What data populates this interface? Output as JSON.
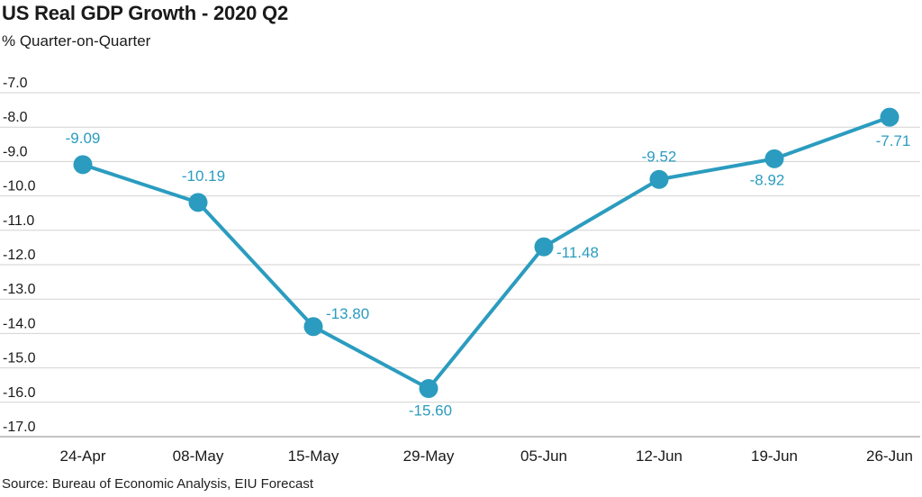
{
  "chart_data": {
    "type": "line",
    "title": "US Real GDP Growth - 2020 Q2",
    "subtitle": "% Quarter-on-Quarter",
    "source": "Source: Bureau of Economic Analysis, EIU Forecast",
    "categories": [
      "24-Apr",
      "08-May",
      "15-May",
      "29-May",
      "05-Jun",
      "12-Jun",
      "19-Jun",
      "26-Jun"
    ],
    "series": [
      {
        "values": [
          -9.09,
          -10.19,
          -13.8,
          -15.6,
          -11.48,
          -9.52,
          -8.92,
          -7.71
        ],
        "labels": [
          "-9.09",
          "-10.19",
          "-13.80",
          "-15.60",
          "-11.48",
          "-9.52",
          "-8.92",
          "-7.71"
        ],
        "color": "#2b9cbf"
      }
    ],
    "yticks": [
      "-7.0",
      "-8.0",
      "-9.0",
      "-10.0",
      "-11.0",
      "-12.0",
      "-13.0",
      "-14.0",
      "-15.0",
      "-16.0",
      "-17.0"
    ],
    "ylim": [
      -17.0,
      -7.0
    ],
    "grid": true,
    "legend": "none",
    "xlabel": "",
    "ylabel": ""
  }
}
